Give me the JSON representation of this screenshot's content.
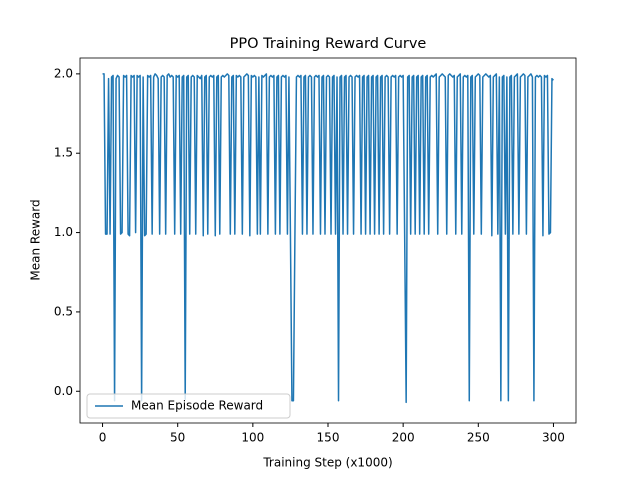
{
  "chart_data": {
    "type": "line",
    "title": "PPO Training Reward Curve",
    "xlabel": "Training Step (x1000)",
    "ylabel": "Mean Reward",
    "x": [
      0,
      1,
      2,
      3,
      4,
      5,
      6,
      7,
      8,
      9,
      10,
      11,
      12,
      13,
      14,
      15,
      16,
      17,
      18,
      19,
      20,
      21,
      22,
      23,
      24,
      25,
      26,
      27,
      28,
      29,
      30,
      31,
      32,
      33,
      34,
      35,
      36,
      37,
      38,
      39,
      40,
      41,
      42,
      43,
      44,
      45,
      46,
      47,
      48,
      49,
      50,
      51,
      52,
      53,
      54,
      55,
      56,
      57,
      58,
      59,
      60,
      61,
      62,
      63,
      64,
      65,
      66,
      67,
      68,
      69,
      70,
      71,
      72,
      73,
      74,
      75,
      76,
      77,
      78,
      79,
      80,
      81,
      82,
      83,
      84,
      85,
      86,
      87,
      88,
      89,
      90,
      91,
      92,
      93,
      94,
      95,
      96,
      97,
      98,
      99,
      100,
      101,
      102,
      103,
      104,
      105,
      106,
      107,
      108,
      109,
      110,
      111,
      112,
      113,
      114,
      115,
      116,
      117,
      118,
      119,
      120,
      121,
      122,
      123,
      124,
      125,
      126,
      127,
      128,
      129,
      130,
      131,
      132,
      133,
      134,
      135,
      136,
      137,
      138,
      139,
      140,
      141,
      142,
      143,
      144,
      145,
      146,
      147,
      148,
      149,
      150,
      151,
      152,
      153,
      154,
      155,
      156,
      157,
      158,
      159,
      160,
      161,
      162,
      163,
      164,
      165,
      166,
      167,
      168,
      169,
      170,
      171,
      172,
      173,
      174,
      175,
      176,
      177,
      178,
      179,
      180,
      181,
      182,
      183,
      184,
      185,
      186,
      187,
      188,
      189,
      190,
      191,
      192,
      193,
      194,
      195,
      196,
      197,
      198,
      199,
      200,
      201,
      202,
      203,
      204,
      205,
      206,
      207,
      208,
      209,
      210,
      211,
      212,
      213,
      214,
      215,
      216,
      217,
      218,
      219,
      220,
      221,
      222,
      223,
      224,
      225,
      226,
      227,
      228,
      229,
      230,
      231,
      232,
      233,
      234,
      235,
      236,
      237,
      238,
      239,
      240,
      241,
      242,
      243,
      244,
      245,
      246,
      247,
      248,
      249,
      250,
      251,
      252,
      253,
      254,
      255,
      256,
      257,
      258,
      259,
      260,
      261,
      262,
      263,
      264,
      265,
      266,
      267,
      268,
      269,
      270,
      271,
      272,
      273,
      274,
      275,
      276,
      277,
      278,
      279,
      280,
      281,
      282,
      283,
      284,
      285,
      286,
      287,
      288,
      289,
      290,
      291,
      292,
      293,
      294,
      295,
      296,
      297,
      298,
      299,
      300
    ],
    "series": [
      {
        "name": "Mean Episode Reward",
        "color": "#1f77b4",
        "values": [
          2.0,
          2.0,
          0.99,
          0.99,
          1.97,
          0.99,
          1.98,
          1.99,
          -0.06,
          1.97,
          1.99,
          1.98,
          0.99,
          1.0,
          1.99,
          1.98,
          1.99,
          0.99,
          0.98,
          1.99,
          1.98,
          1.99,
          1.0,
          1.99,
          1.98,
          1.99,
          -0.06,
          1.98,
          0.98,
          0.99,
          1.99,
          1.98,
          1.99,
          0.99,
          1.98,
          2.0,
          1.99,
          1.97,
          0.99,
          1.98,
          1.99,
          1.98,
          0.99,
          1.99,
          2.0,
          1.98,
          1.99,
          1.98,
          0.99,
          1.99,
          1.98,
          1.99,
          0.99,
          1.98,
          1.99,
          -0.05,
          1.98,
          1.99,
          0.99,
          1.98,
          1.99,
          1.98,
          0.99,
          1.99,
          1.98,
          1.97,
          1.99,
          0.98,
          1.98,
          1.99,
          0.99,
          1.98,
          1.99,
          1.98,
          1.99,
          0.98,
          1.98,
          1.99,
          0.99,
          1.98,
          1.99,
          1.98,
          1.99,
          2.0,
          1.99,
          0.99,
          1.98,
          1.99,
          0.99,
          1.99,
          1.98,
          1.99,
          1.98,
          0.99,
          1.98,
          1.99,
          2.0,
          1.99,
          0.98,
          1.99,
          1.98,
          1.99,
          1.98,
          0.99,
          1.98,
          0.99,
          1.99,
          1.98,
          1.99,
          2.0,
          0.99,
          1.98,
          1.99,
          1.98,
          1.99,
          0.99,
          1.98,
          1.99,
          0.99,
          1.98,
          1.99,
          1.98,
          1.99,
          0.99,
          1.98,
          0.99,
          -0.06,
          -0.06,
          0.99,
          1.98,
          1.99,
          1.98,
          1.99,
          0.99,
          1.98,
          1.99,
          0.99,
          1.98,
          1.99,
          1.98,
          0.99,
          1.98,
          1.99,
          1.98,
          1.99,
          0.99,
          1.98,
          1.99,
          0.99,
          1.98,
          1.99,
          1.98,
          0.99,
          1.98,
          1.99,
          0.99,
          1.98,
          -0.06,
          1.98,
          1.99,
          0.99,
          1.98,
          1.99,
          0.99,
          1.98,
          1.99,
          1.98,
          0.99,
          1.98,
          1.99,
          1.98,
          1.99,
          0.99,
          1.98,
          1.99,
          0.99,
          1.98,
          1.99,
          0.99,
          1.98,
          1.99,
          0.99,
          1.98,
          1.99,
          0.99,
          1.98,
          1.99,
          0.99,
          1.98,
          1.99,
          1.98,
          0.99,
          1.98,
          1.99,
          1.98,
          1.99,
          0.99,
          1.98,
          1.99,
          1.98,
          1.99,
          0.99,
          -0.07,
          1.98,
          1.99,
          0.99,
          1.98,
          1.99,
          0.99,
          1.98,
          1.99,
          0.99,
          1.98,
          1.99,
          0.99,
          1.98,
          1.99,
          0.99,
          1.98,
          1.99,
          1.98,
          1.99,
          2.0,
          0.99,
          1.98,
          1.99,
          2.0,
          1.99,
          1.98,
          0.99,
          1.99,
          2.0,
          1.99,
          1.98,
          1.99,
          0.99,
          1.98,
          1.99,
          2.0,
          0.99,
          1.98,
          1.99,
          1.98,
          1.99,
          -0.06,
          1.98,
          1.99,
          0.99,
          1.98,
          1.99,
          2.0,
          1.99,
          0.99,
          1.98,
          1.99,
          2.0,
          1.99,
          1.98,
          1.99,
          0.98,
          1.98,
          1.99,
          2.0,
          0.99,
          1.98,
          -0.06,
          1.98,
          1.99,
          0.99,
          1.98,
          -0.06,
          1.98,
          1.99,
          0.99,
          1.98,
          1.99,
          2.0,
          0.99,
          1.98,
          1.99,
          2.0,
          1.99,
          0.99,
          1.98,
          1.99,
          2.0,
          1.98,
          -0.06,
          1.98,
          1.99,
          1.98,
          1.99,
          1.98,
          0.98,
          1.99,
          1.98,
          1.99,
          0.99,
          1.0,
          1.97,
          1.96
        ]
      }
    ],
    "xlim": [
      -15,
      315
    ],
    "ylim": [
      -0.2,
      2.1
    ],
    "xticks": [
      0,
      50,
      100,
      150,
      200,
      250,
      300
    ],
    "yticks": [
      {
        "value": 0,
        "label": "0.0"
      },
      0.5,
      {
        "value": 1,
        "label": "1.0"
      },
      1.5,
      {
        "value": 2,
        "label": "2.0"
      }
    ],
    "legend": "lower left"
  }
}
